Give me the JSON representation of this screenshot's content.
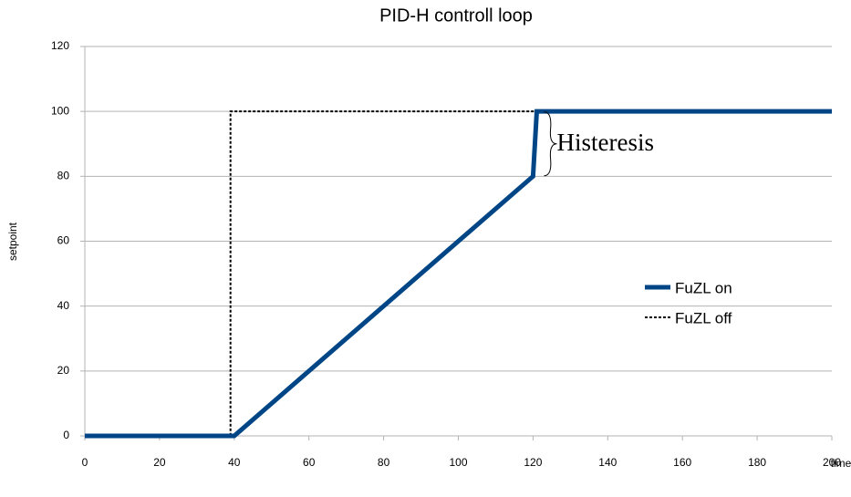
{
  "chart_data": {
    "type": "line",
    "title": "PID-H controll loop",
    "xlabel": "time",
    "ylabel": "setpoint",
    "xlim": [
      0,
      200
    ],
    "xticks": [
      0,
      20,
      40,
      60,
      80,
      100,
      120,
      140,
      160,
      180,
      200
    ],
    "ylim": [
      0,
      120
    ],
    "yticks": [
      0,
      20,
      40,
      60,
      80,
      100,
      120
    ],
    "grid": true,
    "legend": "right",
    "annotation": {
      "text": "Histeresis",
      "x": 121,
      "y": 90
    },
    "series": [
      {
        "name": "FuZL on",
        "color": "#004586",
        "line_style": "solid",
        "x": [
          0,
          40,
          120,
          121,
          200
        ],
        "values": [
          0,
          0,
          80,
          100,
          100
        ]
      },
      {
        "name": "FuZL off",
        "color": "#000000",
        "line_style": "dotted",
        "x": [
          0,
          39,
          39,
          200
        ],
        "values": [
          0,
          0,
          100,
          100
        ]
      }
    ]
  }
}
